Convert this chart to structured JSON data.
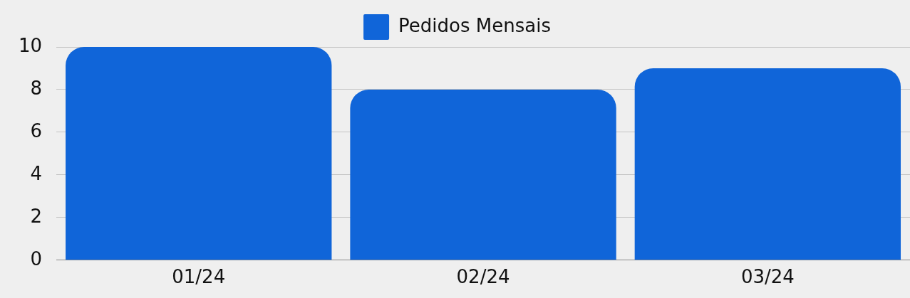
{
  "chart_data": {
    "type": "bar",
    "categories": [
      "01/24",
      "02/24",
      "03/24"
    ],
    "series": [
      {
        "name": "Pedidos Mensais",
        "color": "#1065d9",
        "values": [
          10,
          8,
          9
        ]
      }
    ],
    "ylim": [
      0,
      10
    ],
    "yticks": [
      0,
      2,
      4,
      6,
      8,
      10
    ],
    "grid": "y",
    "legend": "top"
  }
}
